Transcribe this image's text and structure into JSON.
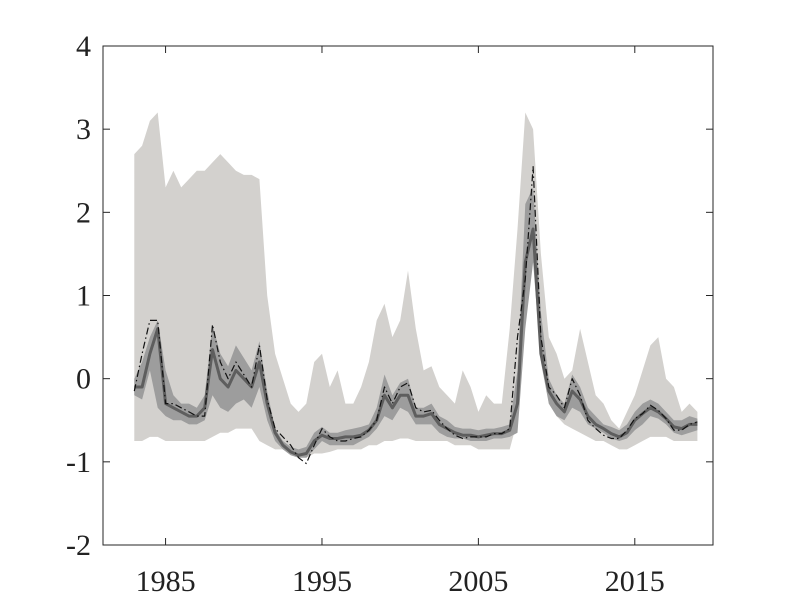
{
  "chart_data": {
    "type": "line",
    "title": "",
    "xlabel": "",
    "ylabel": "",
    "xlim": [
      1981,
      2020
    ],
    "ylim": [
      -2,
      4
    ],
    "x_ticks": [
      {
        "value": 1985,
        "label": "1985"
      },
      {
        "value": 1995,
        "label": "1995"
      },
      {
        "value": 2005,
        "label": "2005"
      },
      {
        "value": 2015,
        "label": "2015"
      }
    ],
    "y_ticks": [
      {
        "value": -2,
        "label": "-2"
      },
      {
        "value": -1,
        "label": "-1"
      },
      {
        "value": 0,
        "label": "0"
      },
      {
        "value": 1,
        "label": "1"
      },
      {
        "value": 2,
        "label": "2"
      },
      {
        "value": 3,
        "label": "3"
      },
      {
        "value": 4,
        "label": "4"
      }
    ],
    "grid": false,
    "legend": "none",
    "colors": {
      "outer_band": "#d3d1ce",
      "inner_band": "#9d9d9d",
      "median_line": "#5e5e5e",
      "dashdot_line": "#111111",
      "axis": "#262626"
    },
    "x": [
      1983.0,
      1983.5,
      1984.0,
      1984.5,
      1985.0,
      1985.5,
      1986.0,
      1986.5,
      1987.0,
      1987.5,
      1988.0,
      1988.5,
      1989.0,
      1989.5,
      1990.0,
      1990.5,
      1991.0,
      1991.5,
      1992.0,
      1992.5,
      1993.0,
      1993.5,
      1994.0,
      1994.5,
      1995.0,
      1995.5,
      1996.0,
      1996.5,
      1997.0,
      1997.5,
      1998.0,
      1998.5,
      1999.0,
      1999.5,
      2000.0,
      2000.5,
      2001.0,
      2001.5,
      2002.0,
      2002.5,
      2003.0,
      2003.5,
      2004.0,
      2004.5,
      2005.0,
      2005.5,
      2006.0,
      2006.5,
      2007.0,
      2007.5,
      2008.0,
      2008.5,
      2009.0,
      2009.5,
      2010.0,
      2010.5,
      2011.0,
      2011.5,
      2012.0,
      2012.5,
      2013.0,
      2013.5,
      2014.0,
      2014.5,
      2015.0,
      2015.5,
      2016.0,
      2016.5,
      2017.0,
      2017.5,
      2018.0,
      2018.5,
      2019.0
    ],
    "bands": [
      {
        "lower": [
          -0.75,
          -0.75,
          -0.7,
          -0.7,
          -0.75,
          -0.75,
          -0.75,
          -0.75,
          -0.75,
          -0.75,
          -0.7,
          -0.65,
          -0.65,
          -0.6,
          -0.6,
          -0.6,
          -0.75,
          -0.8,
          -0.85,
          -0.85,
          -0.9,
          -0.9,
          -0.95,
          -0.9,
          -0.9,
          -0.88,
          -0.85,
          -0.85,
          -0.85,
          -0.85,
          -0.8,
          -0.8,
          -0.75,
          -0.75,
          -0.72,
          -0.72,
          -0.75,
          -0.75,
          -0.75,
          -0.75,
          -0.75,
          -0.8,
          -0.8,
          -0.8,
          -0.85,
          -0.85,
          -0.85,
          -0.85,
          -0.85,
          -0.5,
          0.8,
          2.0,
          0.6,
          -0.3,
          -0.45,
          -0.55,
          -0.6,
          -0.65,
          -0.7,
          -0.75,
          -0.75,
          -0.8,
          -0.85,
          -0.85,
          -0.8,
          -0.75,
          -0.7,
          -0.7,
          -0.7,
          -0.75,
          -0.75,
          -0.75,
          -0.75
        ],
        "upper": [
          2.7,
          2.8,
          3.1,
          3.2,
          2.3,
          2.5,
          2.3,
          2.4,
          2.5,
          2.5,
          2.6,
          2.7,
          2.6,
          2.5,
          2.45,
          2.45,
          2.4,
          1.0,
          0.3,
          0.0,
          -0.3,
          -0.4,
          -0.3,
          0.2,
          0.3,
          -0.1,
          0.1,
          -0.3,
          -0.3,
          -0.1,
          0.2,
          0.7,
          0.9,
          0.5,
          0.7,
          1.3,
          0.6,
          0.1,
          0.15,
          -0.1,
          -0.2,
          -0.3,
          0.1,
          -0.1,
          -0.4,
          -0.2,
          -0.3,
          -0.3,
          0.6,
          1.8,
          3.2,
          3.0,
          1.5,
          0.5,
          0.3,
          0.0,
          0.1,
          0.6,
          0.2,
          -0.2,
          -0.3,
          -0.5,
          -0.6,
          -0.4,
          -0.2,
          0.1,
          0.4,
          0.5,
          0.0,
          -0.1,
          -0.4,
          -0.3,
          -0.4
        ]
      },
      {
        "lower": [
          -0.2,
          -0.25,
          0.1,
          -0.35,
          -0.45,
          -0.5,
          -0.5,
          -0.55,
          -0.55,
          -0.5,
          -0.2,
          -0.35,
          -0.4,
          -0.3,
          -0.25,
          -0.35,
          -0.1,
          -0.5,
          -0.75,
          -0.85,
          -0.92,
          -0.95,
          -0.95,
          -0.85,
          -0.75,
          -0.8,
          -0.8,
          -0.8,
          -0.8,
          -0.75,
          -0.7,
          -0.6,
          -0.45,
          -0.5,
          -0.35,
          -0.4,
          -0.55,
          -0.55,
          -0.55,
          -0.65,
          -0.7,
          -0.72,
          -0.72,
          -0.75,
          -0.75,
          -0.75,
          -0.72,
          -0.72,
          -0.7,
          -0.65,
          0.6,
          1.4,
          0.2,
          -0.3,
          -0.45,
          -0.5,
          -0.35,
          -0.4,
          -0.55,
          -0.6,
          -0.65,
          -0.72,
          -0.75,
          -0.72,
          -0.62,
          -0.55,
          -0.45,
          -0.48,
          -0.55,
          -0.65,
          -0.68,
          -0.65,
          -0.62
        ],
        "upper": [
          0.0,
          0.2,
          0.5,
          0.7,
          0.1,
          -0.2,
          -0.3,
          -0.3,
          -0.35,
          -0.2,
          0.65,
          0.3,
          0.15,
          0.4,
          0.25,
          0.1,
          0.45,
          -0.15,
          -0.6,
          -0.75,
          -0.82,
          -0.85,
          -0.82,
          -0.65,
          -0.58,
          -0.65,
          -0.65,
          -0.62,
          -0.6,
          -0.58,
          -0.55,
          -0.35,
          0.05,
          -0.2,
          -0.05,
          0.0,
          -0.35,
          -0.35,
          -0.3,
          -0.45,
          -0.5,
          -0.58,
          -0.6,
          -0.6,
          -0.62,
          -0.6,
          -0.6,
          -0.58,
          -0.55,
          0.1,
          2.1,
          2.3,
          0.8,
          0.0,
          -0.2,
          -0.3,
          0.05,
          -0.1,
          -0.35,
          -0.45,
          -0.55,
          -0.58,
          -0.62,
          -0.55,
          -0.4,
          -0.3,
          -0.25,
          -0.3,
          -0.4,
          -0.5,
          -0.5,
          -0.45,
          -0.48
        ]
      }
    ],
    "series": [
      {
        "style": "solid",
        "values": [
          -0.1,
          -0.1,
          0.3,
          0.6,
          -0.3,
          -0.35,
          -0.4,
          -0.45,
          -0.45,
          -0.35,
          0.35,
          0.0,
          -0.1,
          0.1,
          0.0,
          -0.1,
          0.2,
          -0.3,
          -0.65,
          -0.8,
          -0.88,
          -0.92,
          -0.9,
          -0.75,
          -0.68,
          -0.72,
          -0.72,
          -0.7,
          -0.7,
          -0.68,
          -0.62,
          -0.5,
          -0.2,
          -0.35,
          -0.2,
          -0.2,
          -0.45,
          -0.45,
          -0.42,
          -0.55,
          -0.6,
          -0.65,
          -0.68,
          -0.68,
          -0.7,
          -0.68,
          -0.66,
          -0.66,
          -0.62,
          -0.3,
          1.4,
          1.8,
          0.3,
          -0.15,
          -0.3,
          -0.4,
          -0.15,
          -0.25,
          -0.45,
          -0.55,
          -0.6,
          -0.66,
          -0.7,
          -0.65,
          -0.5,
          -0.42,
          -0.35,
          -0.4,
          -0.48,
          -0.58,
          -0.6,
          -0.55,
          -0.55
        ]
      },
      {
        "style": "dashdot",
        "values": [
          -0.15,
          0.3,
          0.7,
          0.7,
          -0.3,
          -0.3,
          -0.35,
          -0.4,
          -0.45,
          -0.45,
          0.65,
          0.2,
          0.0,
          0.2,
          0.05,
          -0.1,
          0.4,
          -0.25,
          -0.6,
          -0.7,
          -0.8,
          -0.95,
          -1.02,
          -0.8,
          -0.6,
          -0.7,
          -0.75,
          -0.75,
          -0.72,
          -0.7,
          -0.62,
          -0.5,
          -0.1,
          -0.3,
          -0.1,
          -0.05,
          -0.35,
          -0.4,
          -0.38,
          -0.5,
          -0.6,
          -0.68,
          -0.72,
          -0.7,
          -0.7,
          -0.7,
          -0.66,
          -0.66,
          -0.6,
          0.5,
          1.2,
          2.55,
          0.5,
          -0.1,
          -0.2,
          -0.35,
          0.0,
          -0.2,
          -0.5,
          -0.6,
          -0.68,
          -0.72,
          -0.72,
          -0.62,
          -0.48,
          -0.42,
          -0.32,
          -0.38,
          -0.48,
          -0.62,
          -0.62,
          -0.55,
          -0.52
        ]
      }
    ]
  }
}
